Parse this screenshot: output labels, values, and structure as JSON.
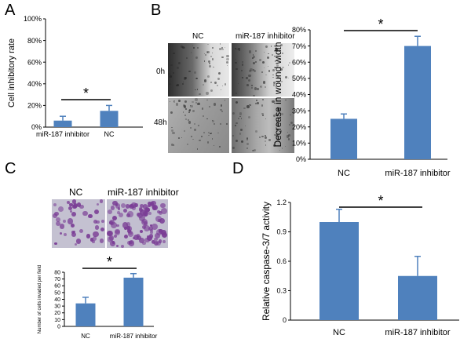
{
  "panels": {
    "A": {
      "label": "A",
      "chart_data": {
        "type": "bar",
        "categories": [
          "miR-187 inhibitor",
          "NC"
        ],
        "values": [
          6,
          15
        ],
        "errors": [
          4,
          5
        ],
        "ylabel": "Cell inhibitory rate",
        "ylim": [
          0,
          100
        ],
        "yticks": [
          "0%",
          "20%",
          "40%",
          "60%",
          "80%",
          "100%"
        ],
        "significance": "*",
        "grid": false
      }
    },
    "B": {
      "label": "B",
      "image_labels": {
        "col1": "NC",
        "col2": "miR-187 inhibitor",
        "row1": "0h",
        "row2": "48h"
      },
      "chart_data": {
        "type": "bar",
        "categories": [
          "NC",
          "miR-187 inhibitor"
        ],
        "values": [
          25,
          70
        ],
        "errors": [
          3,
          6
        ],
        "ylabel": "Decrease in wound width",
        "ylim": [
          0,
          80
        ],
        "yticks": [
          "0%",
          "10%",
          "20%",
          "30%",
          "40%",
          "50%",
          "60%",
          "70%",
          "80%"
        ],
        "significance": "*",
        "grid": false
      }
    },
    "C": {
      "label": "C",
      "image_labels": {
        "col1": "NC",
        "col2": "miR-187 inhibitor"
      },
      "chart_data": {
        "type": "bar",
        "categories": [
          "NC",
          "miR-187 inhibitor"
        ],
        "values": [
          34,
          72
        ],
        "errors": [
          9,
          6
        ],
        "ylabel": "Number of cells invaded per field",
        "ylim": [
          0,
          80
        ],
        "yticks": [
          "0",
          "10",
          "20",
          "30",
          "40",
          "50",
          "60",
          "70",
          "80"
        ],
        "significance": "*",
        "grid": false
      }
    },
    "D": {
      "label": "D",
      "chart_data": {
        "type": "bar",
        "categories": [
          "NC",
          "miR-187 inhibitor"
        ],
        "values": [
          1.0,
          0.45
        ],
        "errors": [
          0.13,
          0.2
        ],
        "ylabel": "Relative caspase-3/7 activity",
        "ylim": [
          0,
          1.2
        ],
        "yticks": [
          "0",
          "0.3",
          "0.6",
          "0.9",
          "1.2"
        ],
        "significance": "*",
        "grid": false
      }
    }
  },
  "colors": {
    "bar": "#4f81bd",
    "micro_bg": "#b6b3c4",
    "cell": "#7a3d95"
  }
}
